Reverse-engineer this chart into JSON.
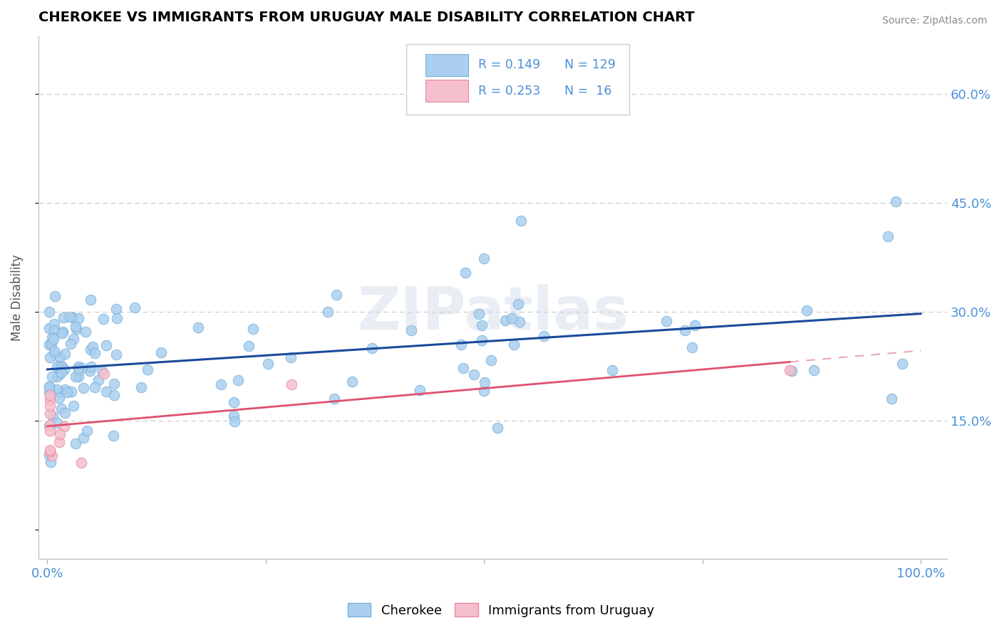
{
  "title": "CHEROKEE VS IMMIGRANTS FROM URUGUAY MALE DISABILITY CORRELATION CHART",
  "source": "Source: ZipAtlas.com",
  "ylabel": "Male Disability",
  "x_tick_labels": [
    "0.0%",
    "",
    "",
    "",
    "100.0%"
  ],
  "y_tick_labels": [
    "",
    "15.0%",
    "30.0%",
    "45.0%",
    "60.0%"
  ],
  "y_tick_color": "#4a90d9",
  "x_tick_color": "#4a90d9",
  "cherokee_color": "#aacfef",
  "cherokee_edge": "#7ab0d8",
  "uruguay_color": "#f5bfcc",
  "uruguay_edge": "#e888a0",
  "trend_blue_color": "#1a4a9a",
  "trend_pink_solid_color": "#e05070",
  "trend_pink_dash_color": "#e8a8b8",
  "watermark_text": "ZIPatlas",
  "background_color": "#ffffff",
  "legend_text_color": "#4a90d9",
  "legend_r1": "R = 0.149",
  "legend_n1": "N = 129",
  "legend_r2": "R = 0.253",
  "legend_n2": "N =  16"
}
